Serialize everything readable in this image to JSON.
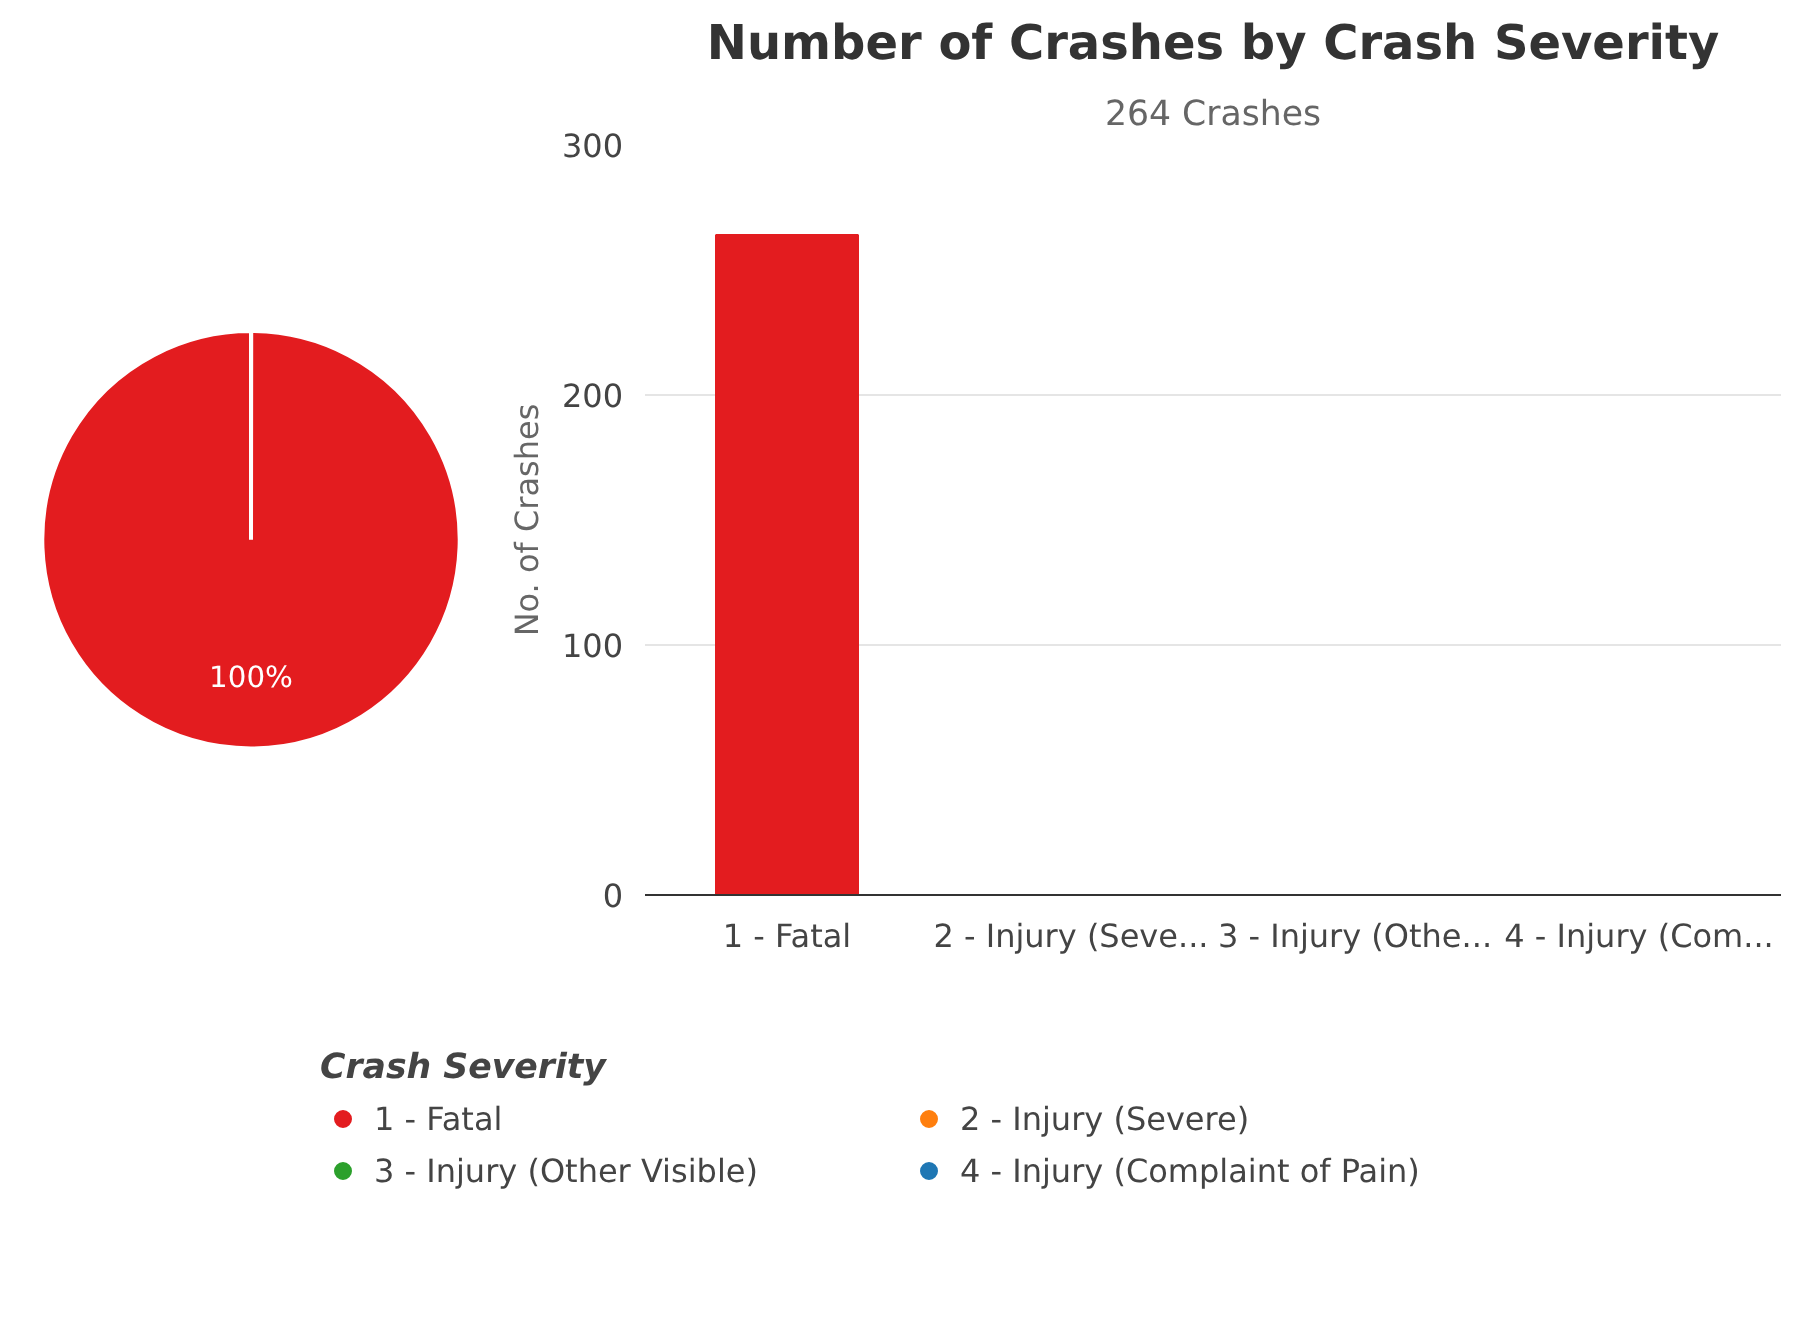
{
  "chart_data": [
    {
      "type": "pie",
      "categories": [
        "1 - Fatal",
        "2 - Injury (Severe)",
        "3 - Injury (Other Visible)",
        "4 - Injury (Complaint of Pain)"
      ],
      "values": [
        100,
        0,
        0,
        0
      ],
      "colors": [
        "#e31c1f",
        "#ff7f0e",
        "#2ca02c",
        "#1f77b4"
      ],
      "value_labels": [
        "100%",
        null,
        null,
        null
      ],
      "legend": "bottom",
      "legend_title": "Crash Severity"
    },
    {
      "type": "bar",
      "title": "Number of Crashes by Crash Severity",
      "subtitle": "264 Crashes",
      "categories": [
        "1 - Fatal",
        "2 - Injury (Seve...",
        "3 - Injury (Othe...",
        "4 - Injury (Com..."
      ],
      "values": [
        264,
        0,
        0,
        0
      ],
      "color": "#e31c1f",
      "ylabel": "No. of Crashes",
      "ylim": [
        0,
        300
      ],
      "yticks": [
        0,
        100,
        200,
        300
      ],
      "grid": "y"
    }
  ]
}
